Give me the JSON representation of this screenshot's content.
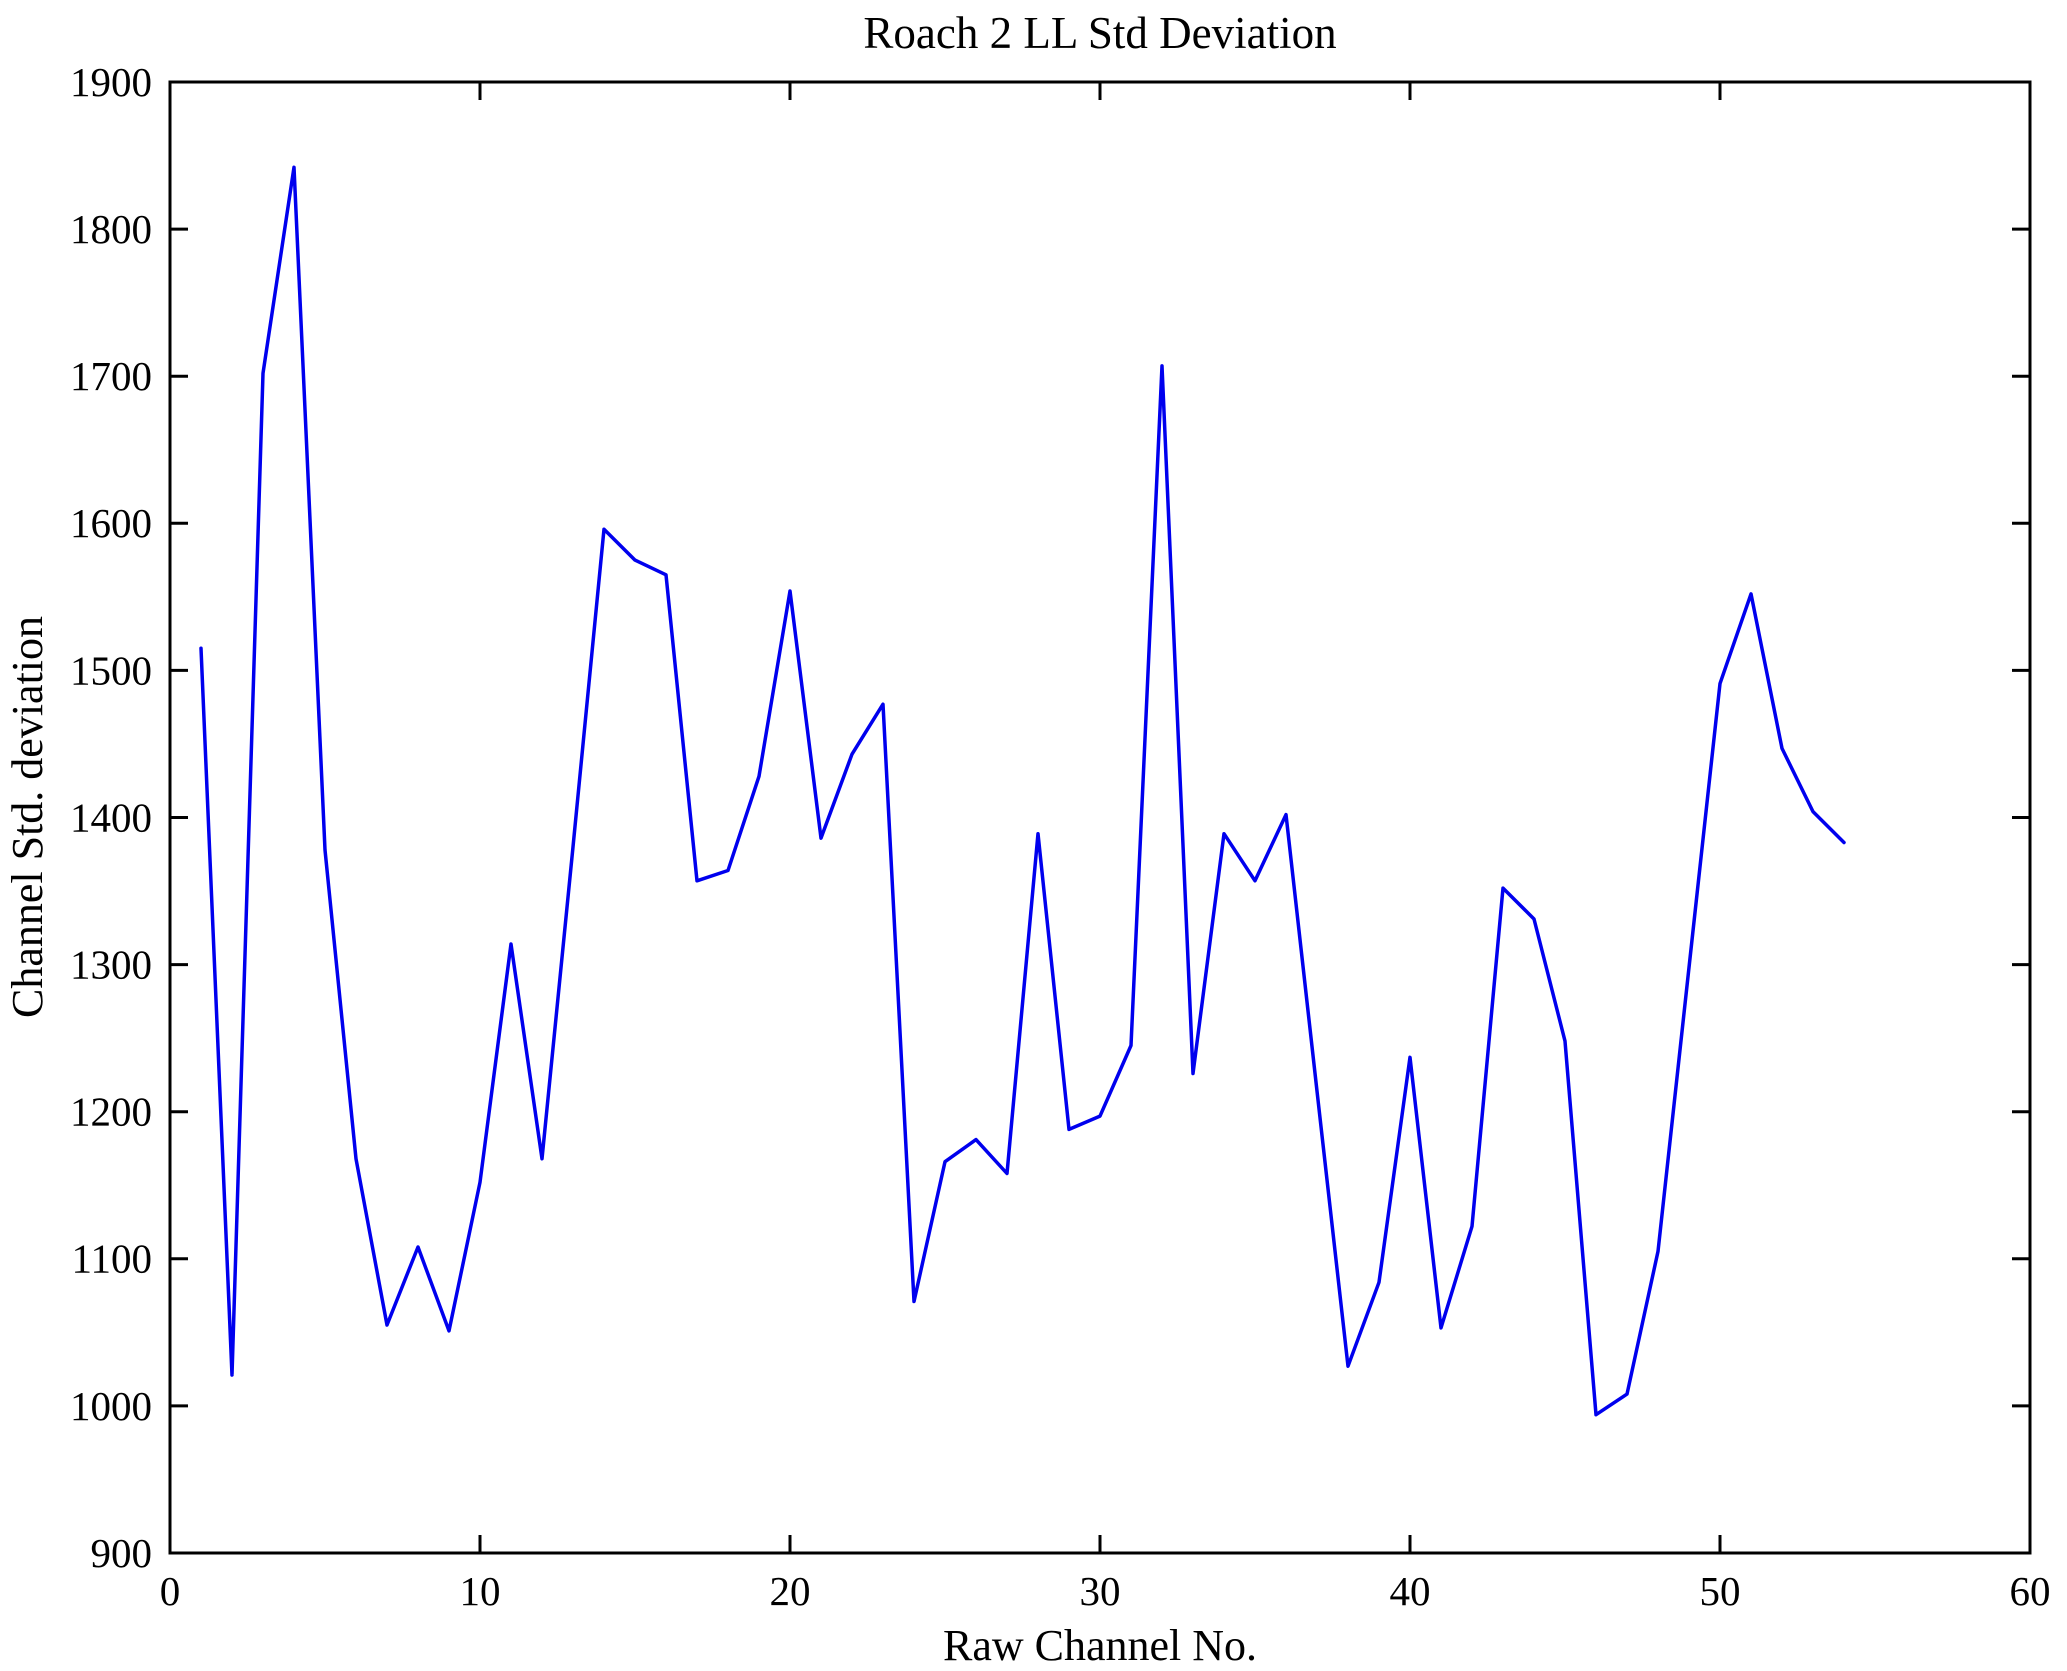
{
  "figure": {
    "title": "Roach 2 LL Std Deviation",
    "xlabel": "Raw Channel No.",
    "ylabel": "Channel Std. deviation"
  },
  "colors": {
    "line": "#0000EE",
    "axis": "#000000",
    "background": "#FFFFFF"
  },
  "chart_data": {
    "type": "line",
    "title": "Roach 2 LL Std Deviation",
    "xlabel": "Raw Channel No.",
    "ylabel": "Channel Std. deviation",
    "xlim": [
      0,
      60
    ],
    "ylim": [
      900,
      1900
    ],
    "xticks": [
      0,
      10,
      20,
      30,
      40,
      50,
      60
    ],
    "yticks": [
      900,
      1000,
      1100,
      1200,
      1300,
      1400,
      1500,
      1600,
      1700,
      1800,
      1900
    ],
    "grid": false,
    "legend_position": "none",
    "box": true,
    "series": [
      {
        "name": "Channel Std. deviation",
        "x": [
          1,
          2,
          3,
          4,
          5,
          6,
          7,
          8,
          9,
          10,
          11,
          12,
          13,
          14,
          15,
          16,
          17,
          18,
          19,
          20,
          21,
          22,
          23,
          24,
          25,
          26,
          27,
          28,
          29,
          30,
          31,
          32,
          33,
          34,
          35,
          36,
          37,
          38,
          39,
          40,
          41,
          42,
          43,
          44,
          45,
          46,
          47,
          48,
          49,
          50,
          51,
          52,
          53,
          54
        ],
        "y": [
          1515,
          1021,
          1702,
          1842,
          1378,
          1168,
          1055,
          1108,
          1051,
          1152,
          1314,
          1168,
          1380,
          1596,
          1575,
          1565,
          1357,
          1364,
          1428,
          1554,
          1386,
          1443,
          1477,
          1071,
          1166,
          1181,
          1158,
          1389,
          1188,
          1197,
          1245,
          1707,
          1226,
          1389,
          1357,
          1402,
          1214,
          1027,
          1084,
          1237,
          1053,
          1122,
          1352,
          1331,
          1248,
          994,
          1008,
          1105,
          1298,
          1491,
          1552,
          1447,
          1404,
          1383
        ]
      }
    ]
  }
}
